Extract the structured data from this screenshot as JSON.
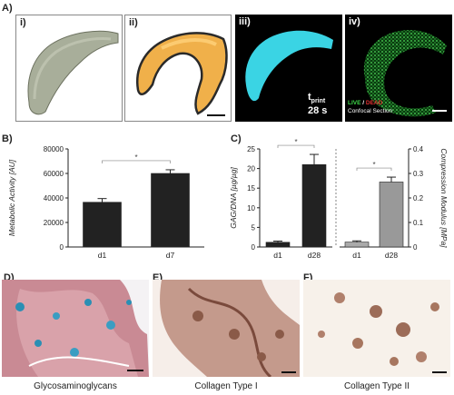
{
  "panel_a": {
    "label": "A)",
    "sub_labels": [
      "i)",
      "ii)",
      "iii)",
      "iv)"
    ],
    "t_print": "t",
    "t_print_sub": "print",
    "t_value": "28 s",
    "live": "LIVE",
    "slash": " / ",
    "dead": "DEAD",
    "confocal": "Confocal Section"
  },
  "panel_b": {
    "label": "B)"
  },
  "panel_c": {
    "label": "C)"
  },
  "panel_d": {
    "label": "D)",
    "caption": "Glycosaminoglycans"
  },
  "panel_e": {
    "label": "E)",
    "caption": "Collagen Type I"
  },
  "panel_f": {
    "label": "F)",
    "caption": "Collagen Type II"
  },
  "chart_data": [
    {
      "type": "bar",
      "ylabel": "Metabolic Activity [AU]",
      "categories": [
        "d1",
        "d7"
      ],
      "values": [
        36500,
        60000
      ],
      "errors": [
        3000,
        3000
      ],
      "ylim": [
        0,
        80000
      ],
      "yticks": [
        "0",
        "20000",
        "40000",
        "60000",
        "80000"
      ],
      "significance": "*",
      "colors": [
        "#222222",
        "#222222"
      ]
    },
    {
      "type": "bar",
      "ylabel": "GAG/DNA [µg/µg]",
      "categories": [
        "d1",
        "d28"
      ],
      "values": [
        1.2,
        21
      ],
      "errors": [
        0.3,
        2.6
      ],
      "ylim": [
        0,
        25
      ],
      "yticks": [
        "0",
        "5",
        "10",
        "15",
        "20",
        "25"
      ],
      "significance": "*",
      "colors": [
        "#222222",
        "#222222"
      ]
    },
    {
      "type": "bar",
      "ylabel": "Compression Modulus [MPa]",
      "categories": [
        "d1",
        "d28"
      ],
      "values": [
        0.02,
        0.265
      ],
      "errors": [
        0.005,
        0.02
      ],
      "ylim": [
        0,
        0.4
      ],
      "yticks": [
        "0",
        "0.1",
        "0.2",
        "0.3",
        "0.4"
      ],
      "significance": "*",
      "colors": [
        "#aaaaaa",
        "#999999"
      ]
    }
  ]
}
